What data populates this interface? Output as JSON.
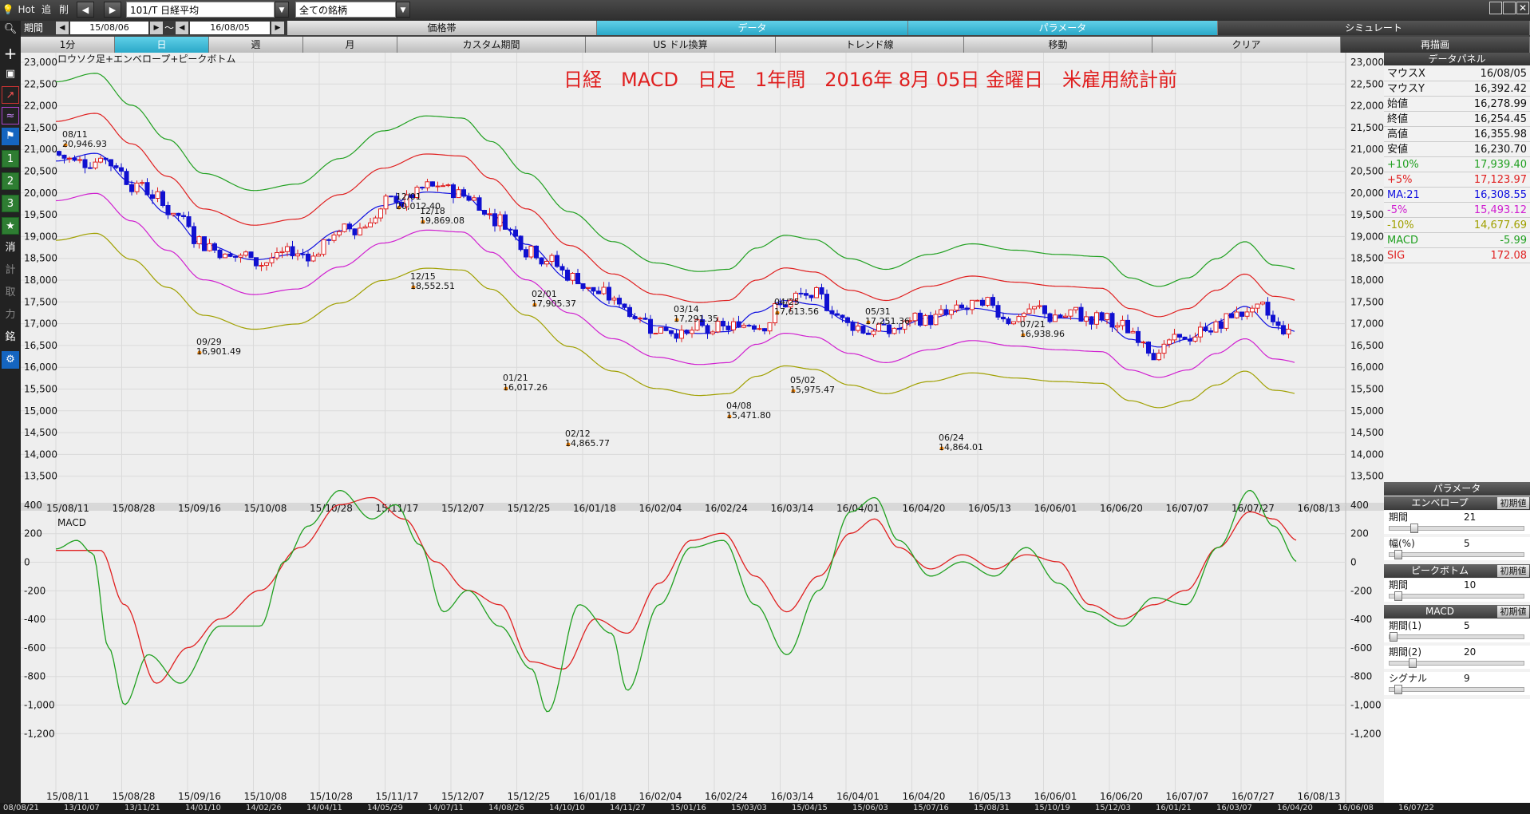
{
  "toolbar": {
    "hot": "Hot",
    "tsui": "追",
    "sakujo": "削",
    "prev": "◀",
    "next": "▶",
    "code": "101/T 日経平均",
    "filter": "全ての銘柄",
    "kikan": "期間",
    "from": "15/08/06",
    "tilde": "～",
    "to": "16/08/05"
  },
  "tabs1": [
    "価格帯",
    "データ",
    "パラメータ",
    "シミュレート"
  ],
  "tabs2": [
    "1分",
    "日",
    "週",
    "月",
    "カスタム期間",
    "US ドル換算",
    "トレンド線",
    "移動",
    "クリア",
    "再描画"
  ],
  "left_icons": [
    "search-icon",
    "crosshair-icon",
    "camera-icon",
    "chart-line-icon",
    "chart-multi-icon",
    "flag-icon",
    "1",
    "2",
    "3",
    "star-icon",
    "消",
    "計",
    "取",
    "力",
    "銘",
    "gear-icon"
  ],
  "chart_title": "日経　MACD　日足　1年間　2016年 8月 05日 金曜日　米雇用統計前",
  "chart_subtitle": "ロウソク足+エンベロープ+ピークボトム",
  "macd_label": "MACD",
  "colors": {
    "title": "#e02020",
    "ma": "#1010e0",
    "p5": "#e02020",
    "p10": "#20a020",
    "m5": "#d020d0",
    "m10": "#a0a000",
    "macd": "#20a020",
    "sig": "#e02020",
    "up": "#e02020",
    "down": "#1010d0"
  },
  "price_axis": [
    "23,000",
    "22,500",
    "22,000",
    "21,500",
    "21,000",
    "20,500",
    "20,000",
    "19,500",
    "19,000",
    "18,500",
    "18,000",
    "17,500",
    "17,000",
    "16,500",
    "16,000",
    "15,500",
    "15,000",
    "14,500",
    "14,000",
    "13,500"
  ],
  "macd_axis": [
    "400",
    "200",
    "0",
    "-200",
    "-400",
    "-600",
    "-800",
    "-1,000",
    "-1,200"
  ],
  "dates": [
    "15/08/11",
    "15/08/28",
    "15/09/16",
    "15/10/08",
    "15/10/28",
    "15/11/17",
    "15/12/07",
    "15/12/25",
    "16/01/18",
    "16/02/04",
    "16/02/24",
    "16/03/14",
    "16/04/01",
    "16/04/20",
    "16/05/13",
    "16/06/01",
    "16/06/20",
    "16/07/07",
    "16/07/27",
    "16/08/13"
  ],
  "bottom_dates": [
    "08/08/21",
    "13/10/07",
    "13/11/21",
    "14/01/10",
    "14/02/26",
    "14/04/11",
    "14/05/29",
    "14/07/11",
    "14/08/26",
    "14/10/10",
    "14/11/27",
    "15/01/16",
    "15/03/03",
    "15/04/15",
    "15/06/03",
    "15/07/16",
    "15/08/31",
    "15/10/19",
    "15/12/03",
    "16/01/21",
    "16/03/07",
    "16/04/20",
    "16/06/08",
    "16/07/22"
  ],
  "annotations": [
    {
      "d": "08/11",
      "v": "20,946.93"
    },
    {
      "d": "09/29",
      "v": "16,901.49"
    },
    {
      "d": "12/01",
      "v": "20,012.40"
    },
    {
      "d": "12/18",
      "v": "19,869.08"
    },
    {
      "d": "12/15",
      "v": "18,552.51"
    },
    {
      "d": "02/01",
      "v": "17,905.37"
    },
    {
      "d": "01/21",
      "v": "16,017.26"
    },
    {
      "d": "02/12",
      "v": "14,865.77"
    },
    {
      "d": "03/14",
      "v": "17,291.35"
    },
    {
      "d": "04/08",
      "v": "15,471.80"
    },
    {
      "d": "04/25",
      "v": "17,613.56"
    },
    {
      "d": "05/02",
      "v": "15,975.47"
    },
    {
      "d": "05/31",
      "v": "17,251.36"
    },
    {
      "d": "06/24",
      "v": "14,864.01"
    },
    {
      "d": "07/21",
      "v": "16,938.96"
    }
  ],
  "panel": {
    "title": "データパネル",
    "rows": [
      {
        "k": "マウスX",
        "v": "16/08/05",
        "c": "#111"
      },
      {
        "k": "マウスY",
        "v": "16,392.42",
        "c": "#111"
      },
      {
        "k": "始値",
        "v": "16,278.99",
        "c": "#111"
      },
      {
        "k": "終値",
        "v": "16,254.45",
        "c": "#111"
      },
      {
        "k": "高値",
        "v": "16,355.98",
        "c": "#111"
      },
      {
        "k": "安値",
        "v": "16,230.70",
        "c": "#111"
      },
      {
        "k": "+10%",
        "v": "17,939.40",
        "c": "#20a020"
      },
      {
        "k": "+5%",
        "v": "17,123.97",
        "c": "#e02020"
      },
      {
        "k": "MA:21",
        "v": "16,308.55",
        "c": "#1010e0"
      },
      {
        "k": "-5%",
        "v": "15,493.12",
        "c": "#d020d0"
      },
      {
        "k": "-10%",
        "v": "14,677.69",
        "c": "#a0a000"
      },
      {
        "k": "MACD",
        "v": "-5.99",
        "c": "#20a020"
      },
      {
        "k": "SIG",
        "v": "172.08",
        "c": "#e02020"
      }
    ],
    "param_title": "パラメータ",
    "reset": "初期値",
    "env_title": "エンベロープ",
    "env_period_k": "期間",
    "env_period_v": "21",
    "env_width_k": "幅(%)",
    "env_width_v": "5",
    "pb_title": "ピークボトム",
    "pb_period_k": "期間",
    "pb_period_v": "10",
    "macd_title": "MACD",
    "m1_k": "期間(1)",
    "m1_v": "5",
    "m2_k": "期間(2)",
    "m2_v": "20",
    "sig_k": "シグナル",
    "sig_v": "9"
  }
}
